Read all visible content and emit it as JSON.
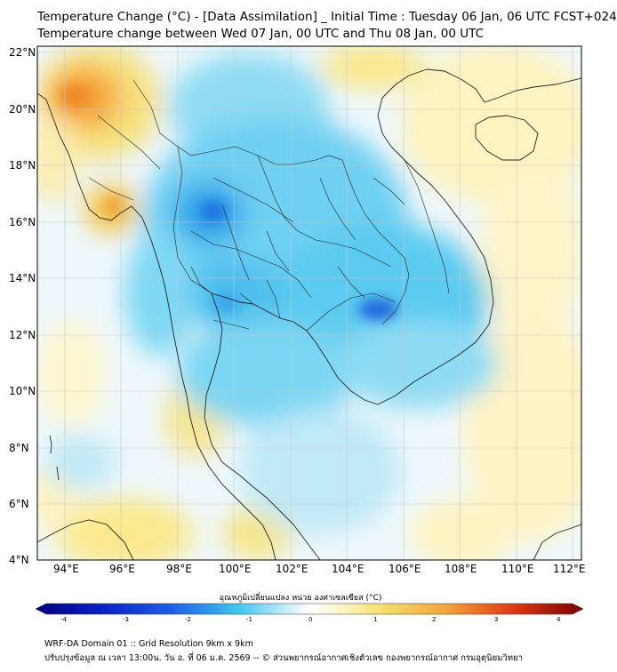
{
  "title_line1": "Temperature Change (°C) - [Data Assimilation] _ Initial Time : Tuesday 06 Jan, 06 UTC FCST+024",
  "title_line2": "Temperature change between Wed 07 Jan, 00 UTC and Thu 08 Jan, 00 UTC",
  "lat_labels": [
    "22°N",
    "20°N",
    "18°N",
    "16°N",
    "14°N",
    "12°N",
    "10°N",
    "8°N",
    "6°N",
    "4°N"
  ],
  "lon_labels": [
    "94°E",
    "96°E",
    "98°E",
    "100°E",
    "102°E",
    "104°E",
    "106°E",
    "108°E",
    "110°E",
    "112°E"
  ],
  "colorbar": {
    "label": "อุณหภูมิเปลี่ยนแปลง หน่วย องศาเซลเซียส (°C)",
    "ticks": [
      "-4",
      "-3",
      "-2",
      "-1",
      "0",
      "1",
      "2",
      "3",
      "4"
    ],
    "colors": {
      "cold": "#00008b",
      "cool": "#3fc6f0",
      "neutral": "#ffffff",
      "warm": "#f5d24a",
      "hot": "#7a0000"
    }
  },
  "footer_line1": "WRF-DA Domain 01 :: Grid Resolution 9km x 9km",
  "footer_line2": "ปรับปรุงข้อมูล ณ เวลา 13:00น. วัน อ. ที่ 06 ม.ค. 2569 -- © ส่วนพยากรณ์อากาศเชิงตัวเลข กองพยากรณ์อากาศ กรมอุตุนิยมวิทยา"
}
